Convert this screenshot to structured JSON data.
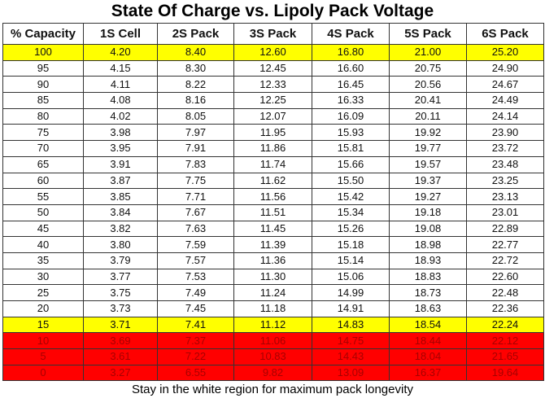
{
  "title": "State Of Charge vs. Lipoly Pack Voltage",
  "headers": [
    "% Capacity",
    "1S Cell",
    "2S Pack",
    "3S Pack",
    "4S Pack",
    "5S Pack",
    "6S Pack"
  ],
  "colors": {
    "yellow": "#ffff00",
    "red": "#ff0000",
    "red_text": "#a80000"
  },
  "rows": [
    {
      "zone": "yellow",
      "cells": [
        "100",
        "4.20",
        "8.40",
        "12.60",
        "16.80",
        "21.00",
        "25.20"
      ]
    },
    {
      "zone": "white",
      "cells": [
        "95",
        "4.15",
        "8.30",
        "12.45",
        "16.60",
        "20.75",
        "24.90"
      ]
    },
    {
      "zone": "white",
      "cells": [
        "90",
        "4.11",
        "8.22",
        "12.33",
        "16.45",
        "20.56",
        "24.67"
      ]
    },
    {
      "zone": "white",
      "cells": [
        "85",
        "4.08",
        "8.16",
        "12.25",
        "16.33",
        "20.41",
        "24.49"
      ]
    },
    {
      "zone": "white",
      "cells": [
        "80",
        "4.02",
        "8.05",
        "12.07",
        "16.09",
        "20.11",
        "24.14"
      ]
    },
    {
      "zone": "white",
      "cells": [
        "75",
        "3.98",
        "7.97",
        "11.95",
        "15.93",
        "19.92",
        "23.90"
      ]
    },
    {
      "zone": "white",
      "cells": [
        "70",
        "3.95",
        "7.91",
        "11.86",
        "15.81",
        "19.77",
        "23.72"
      ]
    },
    {
      "zone": "white",
      "cells": [
        "65",
        "3.91",
        "7.83",
        "11.74",
        "15.66",
        "19.57",
        "23.48"
      ]
    },
    {
      "zone": "white",
      "cells": [
        "60",
        "3.87",
        "7.75",
        "11.62",
        "15.50",
        "19.37",
        "23.25"
      ]
    },
    {
      "zone": "white",
      "cells": [
        "55",
        "3.85",
        "7.71",
        "11.56",
        "15.42",
        "19.27",
        "23.13"
      ]
    },
    {
      "zone": "white",
      "cells": [
        "50",
        "3.84",
        "7.67",
        "11.51",
        "15.34",
        "19.18",
        "23.01"
      ]
    },
    {
      "zone": "white",
      "cells": [
        "45",
        "3.82",
        "7.63",
        "11.45",
        "15.26",
        "19.08",
        "22.89"
      ]
    },
    {
      "zone": "white",
      "cells": [
        "40",
        "3.80",
        "7.59",
        "11.39",
        "15.18",
        "18.98",
        "22.77"
      ]
    },
    {
      "zone": "white",
      "cells": [
        "35",
        "3.79",
        "7.57",
        "11.36",
        "15.14",
        "18.93",
        "22.72"
      ]
    },
    {
      "zone": "white",
      "cells": [
        "30",
        "3.77",
        "7.53",
        "11.30",
        "15.06",
        "18.83",
        "22.60"
      ]
    },
    {
      "zone": "white",
      "cells": [
        "25",
        "3.75",
        "7.49",
        "11.24",
        "14.99",
        "18.73",
        "22.48"
      ]
    },
    {
      "zone": "white",
      "cells": [
        "20",
        "3.73",
        "7.45",
        "11.18",
        "14.91",
        "18.63",
        "22.36"
      ]
    },
    {
      "zone": "yellow",
      "cells": [
        "15",
        "3.71",
        "7.41",
        "11.12",
        "14.83",
        "18.54",
        "22.24"
      ]
    },
    {
      "zone": "red",
      "cells": [
        "10",
        "3.69",
        "7.37",
        "11.06",
        "14.75",
        "18.44",
        "22.12"
      ]
    },
    {
      "zone": "red",
      "cells": [
        "5",
        "3.61",
        "7.22",
        "10.83",
        "14.43",
        "18.04",
        "21.65"
      ]
    },
    {
      "zone": "red",
      "cells": [
        "0",
        "3.27",
        "6.55",
        "9.82",
        "13.09",
        "16.37",
        "19.64"
      ]
    }
  ],
  "footer": "Stay in the white region for maximum pack longevity"
}
